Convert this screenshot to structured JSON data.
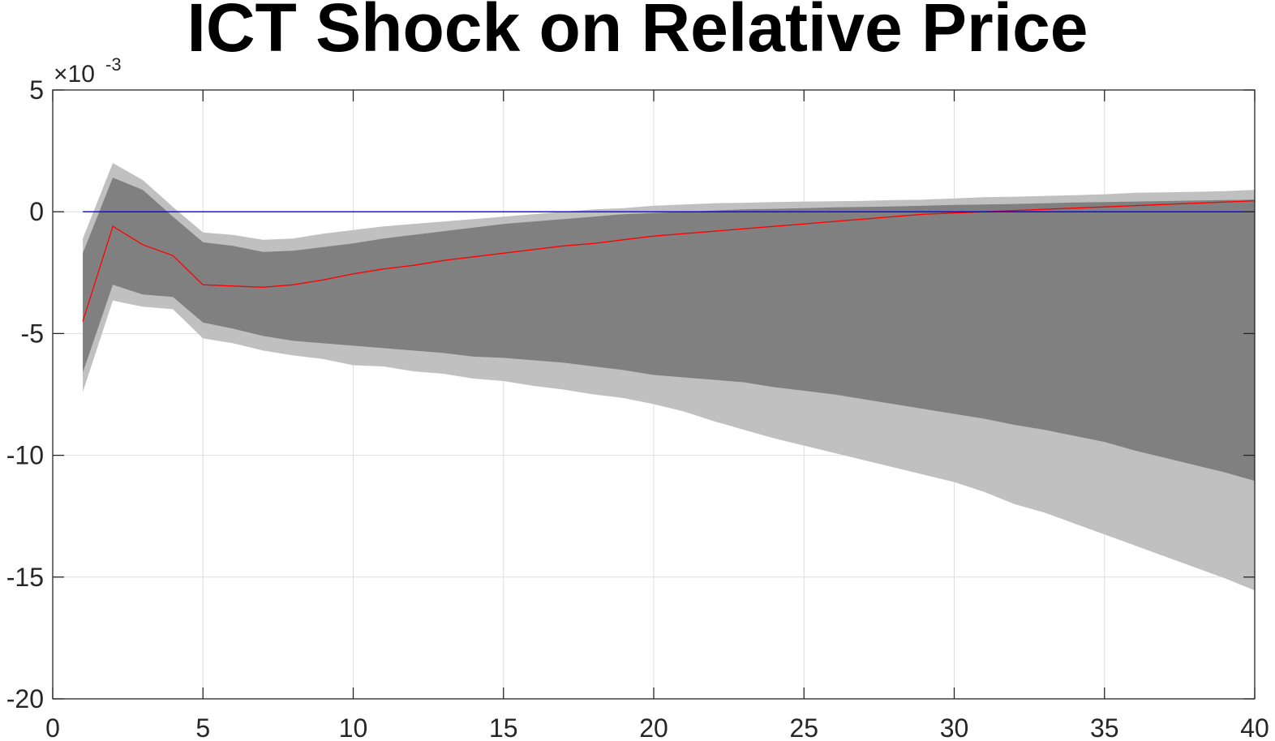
{
  "chart_data": {
    "type": "area",
    "title": "ICT Shock on Relative Price",
    "xlabel": "",
    "ylabel": "",
    "y_exponent_label": "×10",
    "y_exponent_power": "-3",
    "xlim": [
      0,
      40
    ],
    "ylim": [
      -20,
      5
    ],
    "y_scale": 0.001,
    "x_ticks": [
      0,
      5,
      10,
      15,
      20,
      25,
      30,
      35,
      40
    ],
    "x_tick_labels": [
      "0",
      "5",
      "10",
      "15",
      "20",
      "25",
      "30",
      "35",
      "40"
    ],
    "y_ticks": [
      5,
      0,
      -5,
      -10,
      -15,
      -20
    ],
    "y_tick_labels": [
      "5",
      "0",
      "-5",
      "-10",
      "-15",
      "-20"
    ],
    "grid": true,
    "x": [
      1,
      2,
      3,
      4,
      5,
      6,
      7,
      8,
      9,
      10,
      11,
      12,
      13,
      14,
      15,
      16,
      17,
      18,
      19,
      20,
      21,
      22,
      23,
      24,
      25,
      26,
      27,
      28,
      29,
      30,
      31,
      32,
      33,
      34,
      35,
      36,
      37,
      38,
      39,
      40
    ],
    "outer_band": {
      "name": "outer band",
      "color": "#c0c0c0",
      "upper": [
        -1.1,
        2.0,
        1.3,
        0.2,
        -0.85,
        -0.95,
        -1.15,
        -1.1,
        -0.9,
        -0.75,
        -0.6,
        -0.5,
        -0.4,
        -0.3,
        -0.2,
        -0.1,
        0.0,
        0.1,
        0.15,
        0.25,
        0.3,
        0.35,
        0.37,
        0.4,
        0.42,
        0.43,
        0.45,
        0.48,
        0.5,
        0.55,
        0.6,
        0.62,
        0.65,
        0.68,
        0.72,
        0.78,
        0.8,
        0.82,
        0.85,
        0.9
      ],
      "lower": [
        -7.4,
        -3.65,
        -3.9,
        -4.0,
        -5.2,
        -5.4,
        -5.7,
        -5.9,
        -6.05,
        -6.3,
        -6.35,
        -6.55,
        -6.65,
        -6.85,
        -6.95,
        -7.15,
        -7.3,
        -7.5,
        -7.65,
        -7.9,
        -8.2,
        -8.6,
        -8.95,
        -9.3,
        -9.6,
        -9.9,
        -10.2,
        -10.5,
        -10.8,
        -11.1,
        -11.5,
        -12.0,
        -12.35,
        -12.8,
        -13.25,
        -13.7,
        -14.15,
        -14.6,
        -15.05,
        -15.55
      ]
    },
    "inner_band": {
      "name": "inner band",
      "color": "#808080",
      "upper": [
        -1.7,
        1.4,
        0.9,
        -0.2,
        -1.25,
        -1.4,
        -1.65,
        -1.6,
        -1.45,
        -1.3,
        -1.1,
        -0.95,
        -0.8,
        -0.65,
        -0.5,
        -0.4,
        -0.3,
        -0.2,
        -0.1,
        -0.05,
        0.0,
        0.05,
        0.1,
        0.12,
        0.15,
        0.18,
        0.2,
        0.22,
        0.25,
        0.28,
        0.3,
        0.32,
        0.35,
        0.38,
        0.4,
        0.42,
        0.44,
        0.46,
        0.48,
        0.5
      ],
      "lower": [
        -6.6,
        -3.0,
        -3.4,
        -3.5,
        -4.55,
        -4.8,
        -5.1,
        -5.3,
        -5.4,
        -5.5,
        -5.6,
        -5.7,
        -5.8,
        -5.95,
        -6.0,
        -6.1,
        -6.2,
        -6.35,
        -6.5,
        -6.7,
        -6.8,
        -6.9,
        -7.0,
        -7.2,
        -7.35,
        -7.5,
        -7.7,
        -7.9,
        -8.1,
        -8.3,
        -8.5,
        -8.75,
        -8.95,
        -9.2,
        -9.45,
        -9.8,
        -10.1,
        -10.4,
        -10.7,
        -11.05
      ]
    },
    "series": [
      {
        "name": "median response",
        "color": "#ff0000",
        "values": [
          -4.5,
          -0.6,
          -1.35,
          -1.8,
          -3.0,
          -3.05,
          -3.1,
          -3.0,
          -2.8,
          -2.55,
          -2.35,
          -2.2,
          -2.0,
          -1.85,
          -1.7,
          -1.55,
          -1.4,
          -1.3,
          -1.15,
          -1.0,
          -0.9,
          -0.8,
          -0.7,
          -0.6,
          -0.5,
          -0.4,
          -0.3,
          -0.2,
          -0.1,
          -0.05,
          0.0,
          0.05,
          0.1,
          0.15,
          0.2,
          0.25,
          0.3,
          0.35,
          0.4,
          0.45
        ]
      },
      {
        "name": "zero line",
        "color": "#0000ff",
        "x": [
          1,
          40
        ],
        "values": [
          0,
          0
        ]
      }
    ]
  }
}
